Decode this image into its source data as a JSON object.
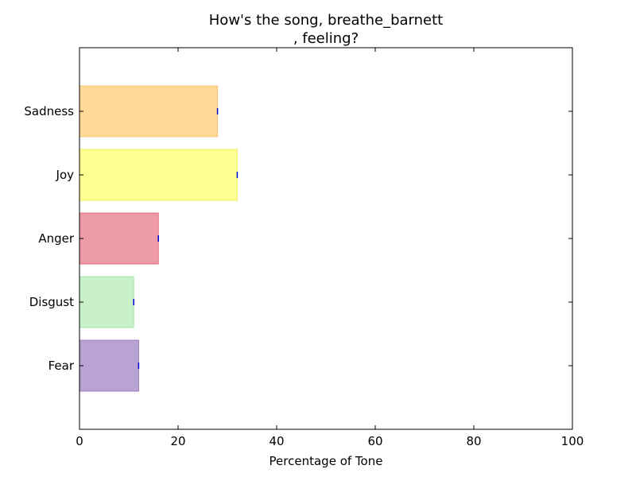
{
  "chart_data": {
    "type": "bar",
    "orientation": "horizontal",
    "title": "How's the song, breathe_barnett\n, feeling?",
    "xlabel": "Percentage of Tone",
    "ylabel": "",
    "xlim": [
      0,
      100
    ],
    "xticks": [
      0,
      20,
      40,
      60,
      80,
      100
    ],
    "categories": [
      "Fear",
      "Disgust",
      "Anger",
      "Joy",
      "Sadness"
    ],
    "values": [
      12,
      11,
      16,
      32,
      28
    ],
    "colors": [
      "#b9a3d3",
      "#c8f0c8",
      "#ee9ba8",
      "#ffff90",
      "#ffd998"
    ],
    "edge_colors": [
      "#9a7bc0",
      "#a6e6a6",
      "#e36b80",
      "#f2f26a",
      "#f5c878"
    ],
    "error_marker_color": "#0000cc",
    "grid": false,
    "legend": "none"
  }
}
